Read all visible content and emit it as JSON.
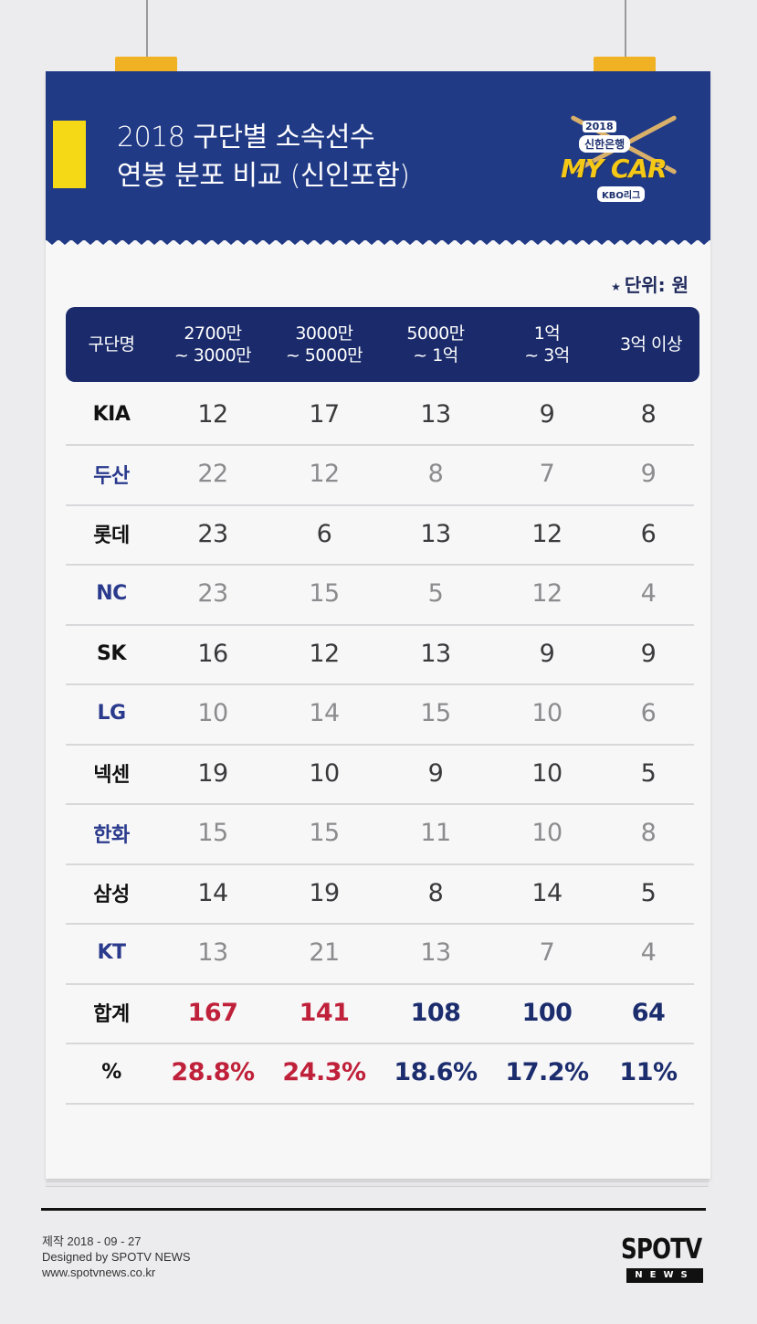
{
  "title": {
    "line1": "2018 구단별 소속선수",
    "line2": "연봉 분포 비교 (신인포함)"
  },
  "logo": {
    "year": "2018",
    "bank": "신한은행",
    "name": "MY CAR",
    "league": "KBO리그"
  },
  "unit": {
    "star": "★",
    "text": "단위: 원"
  },
  "table": {
    "headers": [
      "구단명",
      "2700만\n~ 3000만",
      "3000만\n~ 5000만",
      "5000만\n~ 1억",
      "1억\n~ 3억",
      "3억 이상"
    ],
    "rows": [
      {
        "team": "KIA",
        "values": [
          "12",
          "17",
          "13",
          "9",
          "8"
        ]
      },
      {
        "team": "두산",
        "values": [
          "22",
          "12",
          "8",
          "7",
          "9"
        ]
      },
      {
        "team": "롯데",
        "values": [
          "23",
          "6",
          "13",
          "12",
          "6"
        ]
      },
      {
        "team": "NC",
        "values": [
          "23",
          "15",
          "5",
          "12",
          "4"
        ]
      },
      {
        "team": "SK",
        "values": [
          "16",
          "12",
          "13",
          "9",
          "9"
        ]
      },
      {
        "team": "LG",
        "values": [
          "10",
          "14",
          "15",
          "10",
          "6"
        ]
      },
      {
        "team": "넥센",
        "values": [
          "19",
          "10",
          "9",
          "10",
          "5"
        ]
      },
      {
        "team": "한화",
        "values": [
          "15",
          "15",
          "11",
          "10",
          "8"
        ]
      },
      {
        "team": "삼성",
        "values": [
          "14",
          "19",
          "8",
          "14",
          "5"
        ]
      },
      {
        "team": "KT",
        "values": [
          "13",
          "21",
          "13",
          "7",
          "4"
        ]
      }
    ],
    "total": {
      "team": "합계",
      "values": [
        "167",
        "141",
        "108",
        "100",
        "64"
      ]
    },
    "percent": {
      "team": "%",
      "values": [
        "28.8%",
        "24.3%",
        "18.6%",
        "17.2%",
        "11%"
      ]
    }
  },
  "colors": {
    "header_bg": "#213a86",
    "accent_red": "#c0213a",
    "accent_navy": "#1c2d6e",
    "yellow": "#f5d916"
  },
  "footer": {
    "line1": "제작 2018 - 09 - 27",
    "line2": "Designed by SPOTV NEWS",
    "line3": "www.spotvnews.co.kr"
  },
  "brand": {
    "name": "SPOTV",
    "sub": "NEWS"
  }
}
